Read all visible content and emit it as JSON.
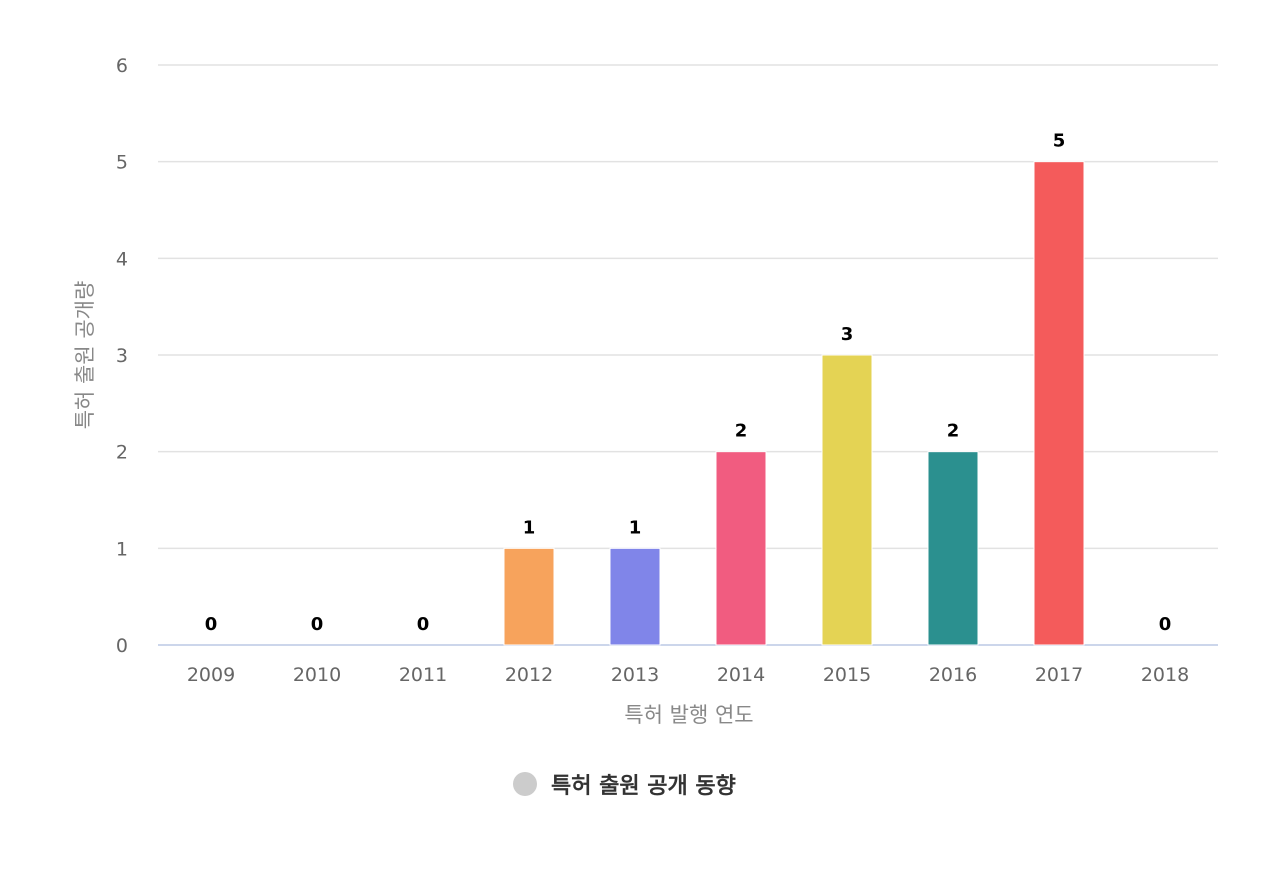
{
  "chart_data": {
    "type": "bar",
    "title": "",
    "xlabel": "특허 발행 연도",
    "ylabel": "특허 출원 공개량",
    "categories": [
      "2009",
      "2010",
      "2011",
      "2012",
      "2013",
      "2014",
      "2015",
      "2016",
      "2017",
      "2018"
    ],
    "series": [
      {
        "name": "특허 출원 공개 동향",
        "values": [
          0,
          0,
          0,
          1,
          1,
          2,
          3,
          2,
          5,
          0
        ],
        "colors": [
          "#7cb5ec",
          "#434348",
          "#90ed7d",
          "#f7a35c",
          "#8085e9",
          "#f15c80",
          "#e4d354",
          "#2b908f",
          "#f45b5b",
          "#91e8e1"
        ]
      }
    ],
    "ylim": [
      0,
      6
    ],
    "yticks": [
      0,
      1,
      2,
      3,
      4,
      5,
      6
    ],
    "grid": true,
    "data_labels": true,
    "legend": {
      "position": "bottom-center",
      "marker_color": "#cccccc"
    }
  }
}
